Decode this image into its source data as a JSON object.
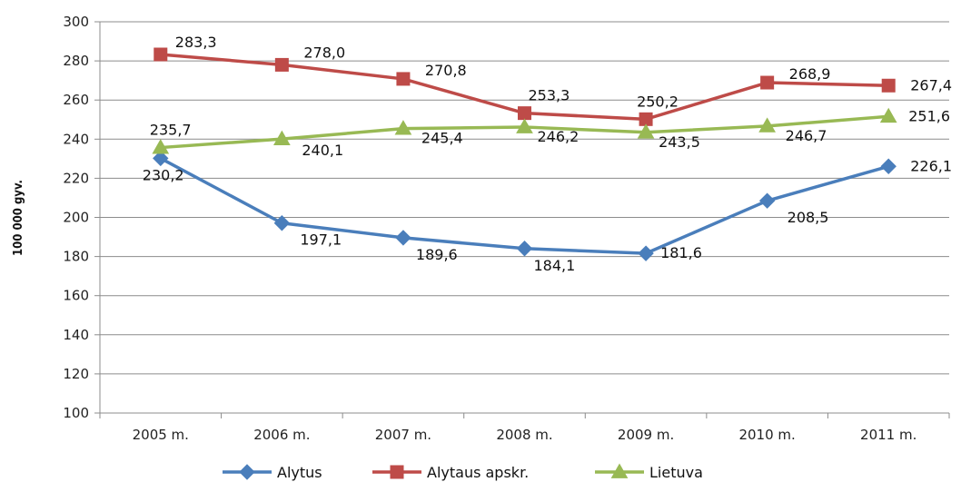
{
  "chart_data": {
    "type": "line",
    "title": "",
    "xlabel": "",
    "ylabel": "100 000 gyv.",
    "ylim": [
      100,
      300
    ],
    "yticks": [
      100,
      120,
      140,
      160,
      180,
      200,
      220,
      240,
      260,
      280,
      300
    ],
    "grid": true,
    "legend": "bottom",
    "categories": [
      "2005 m.",
      "2006 m.",
      "2007 m.",
      "2008 m.",
      "2009 m.",
      "2010 m.",
      "2011 m."
    ],
    "series": [
      {
        "name": "Alytus",
        "marker": "diamond",
        "color": "#4a7ebb",
        "values": [
          230.2,
          197.1,
          189.6,
          184.1,
          181.6,
          208.5,
          226.1
        ],
        "labels": [
          "230,2",
          "197,1",
          "189,6",
          "184,1",
          "181,6",
          "208,5",
          "226,1"
        ]
      },
      {
        "name": "Alytaus apskr.",
        "marker": "square",
        "color": "#be4b48",
        "values": [
          283.3,
          278.0,
          270.8,
          253.3,
          250.2,
          268.9,
          267.4
        ],
        "labels": [
          "283,3",
          "278,0",
          "270,8",
          "253,3",
          "250,2",
          "268,9",
          "267,4"
        ]
      },
      {
        "name": "Lietuva",
        "marker": "triangle",
        "color": "#98b954",
        "values": [
          235.7,
          240.1,
          245.4,
          246.2,
          243.5,
          246.7,
          251.6
        ],
        "labels": [
          "235,7",
          "240,1",
          "245,4",
          "246,2",
          "243,5",
          "246,7",
          "251,6"
        ]
      }
    ]
  }
}
